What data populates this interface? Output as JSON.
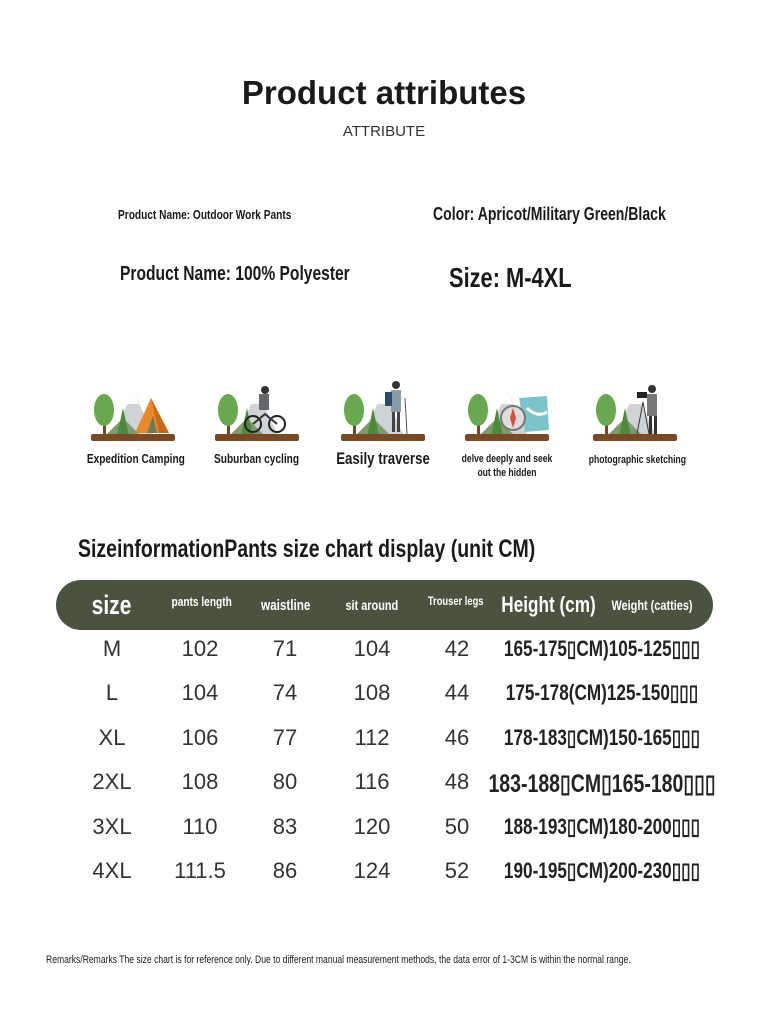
{
  "header": {
    "title": "Product attributes",
    "subtitle": "ATTRIBUTE"
  },
  "attributes": {
    "name_small": "Product Name: Outdoor Work Pants",
    "color": "Color: Apricot/Military Green/Black",
    "material": "Product Name: 100% Polyester",
    "size": "Size: M-4XL"
  },
  "scenarios": [
    {
      "label": "Expedition Camping",
      "icon": "camping-tent-icon"
    },
    {
      "label": "Suburban cycling",
      "icon": "cycling-icon"
    },
    {
      "label": "Easily traverse",
      "icon": "hiker-icon"
    },
    {
      "label": "delve deeply and seek out the hidden",
      "icon": "compass-map-icon"
    },
    {
      "label": "photographic sketching",
      "icon": "photographer-icon"
    }
  ],
  "size_chart": {
    "title": "SizeinformationPants size chart display (unit CM)",
    "header_color": "#4a5340",
    "columns": [
      "size",
      "pants length",
      "waistline",
      "sit around",
      "Trouser legs",
      "Height (cm)",
      "Weight (catties)"
    ],
    "rows": [
      {
        "size": "M",
        "pants_length": "102",
        "waistline": "71",
        "sit_around": "104",
        "trouser_legs": "42",
        "height_weight": "165-175▯CM)105-125▯▯▯"
      },
      {
        "size": "L",
        "pants_length": "104",
        "waistline": "74",
        "sit_around": "108",
        "trouser_legs": "44",
        "height_weight": "175-178(CM)125-150▯▯▯"
      },
      {
        "size": "XL",
        "pants_length": "106",
        "waistline": "77",
        "sit_around": "112",
        "trouser_legs": "46",
        "height_weight": "178-183▯CM)150-165▯▯▯"
      },
      {
        "size": "2XL",
        "pants_length": "108",
        "waistline": "80",
        "sit_around": "116",
        "trouser_legs": "48",
        "height_weight": "183-188▯CM▯165-180▯▯▯"
      },
      {
        "size": "3XL",
        "pants_length": "110",
        "waistline": "83",
        "sit_around": "120",
        "trouser_legs": "50",
        "height_weight": "188-193▯CM)180-200▯▯▯"
      },
      {
        "size": "4XL",
        "pants_length": "111.5",
        "waistline": "86",
        "sit_around": "124",
        "trouser_legs": "52",
        "height_weight": "190-195▯CM)200-230▯▯▯"
      }
    ]
  },
  "remarks": "Remarks/Remarks The size chart is for reference only. Due to different manual measurement methods, the data error of 1-3CM is within the normal range."
}
